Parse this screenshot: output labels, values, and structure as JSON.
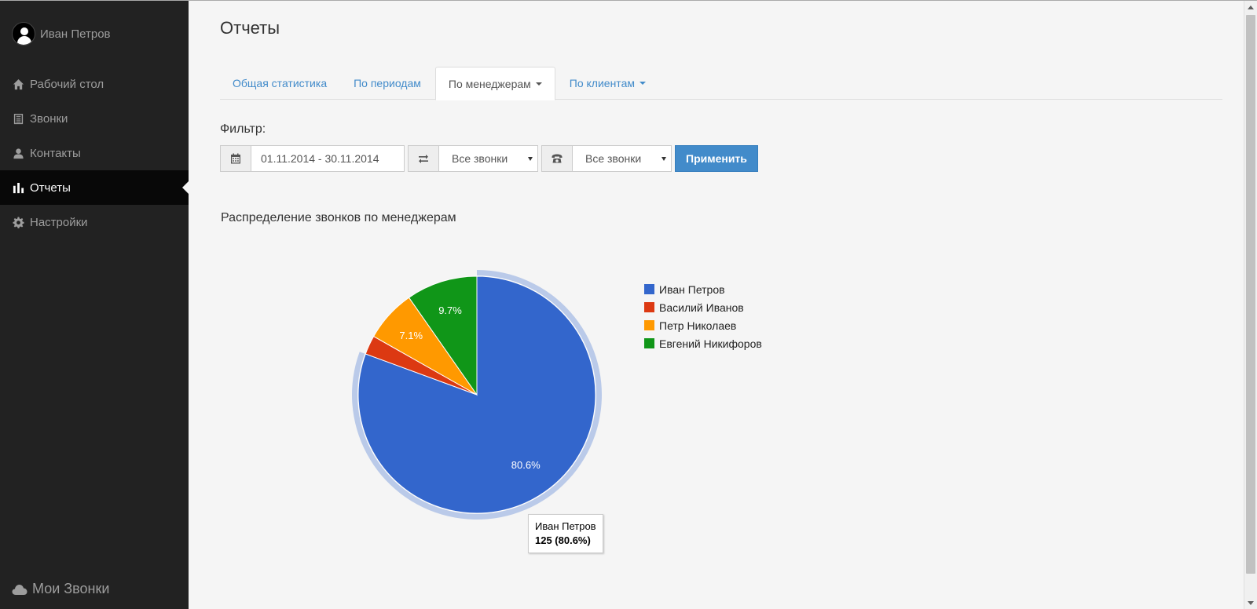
{
  "sidebar": {
    "user_name": "Иван Петров",
    "items": [
      {
        "label": "Рабочий стол",
        "icon": "home-icon"
      },
      {
        "label": "Звонки",
        "icon": "list-icon"
      },
      {
        "label": "Контакты",
        "icon": "user-icon"
      },
      {
        "label": "Отчеты",
        "icon": "bar-chart-icon",
        "active": true
      },
      {
        "label": "Настройки",
        "icon": "gear-icon"
      }
    ],
    "brand": "Мои Звонки"
  },
  "page": {
    "title": "Отчеты"
  },
  "tabs": [
    {
      "label": "Общая статистика"
    },
    {
      "label": "По периодам"
    },
    {
      "label": "По менеджерам",
      "active": true
    },
    {
      "label": "По клиентам"
    }
  ],
  "filter": {
    "label": "Фильтр:",
    "date_range": "01.11.2014 - 30.11.2014",
    "direction_select": "Все звонки",
    "type_select": "Все звонки",
    "apply_label": "Применить"
  },
  "chart_data": {
    "type": "pie",
    "title": "Распределение звонков по менеджерам",
    "categories": [
      "Иван Петров",
      "Василий Иванов",
      "Петр Николаев",
      "Евгений Никифоров"
    ],
    "values": [
      80.6,
      2.6,
      7.1,
      9.7
    ],
    "slice_labels": [
      "80.6%",
      "",
      "7.1%",
      "9.7%"
    ],
    "colors": [
      "#3366cc",
      "#dc3912",
      "#ff9900",
      "#109618"
    ],
    "legend": "right",
    "tooltip": {
      "name": "Иван Петров",
      "value": "125 (80.6%)"
    }
  }
}
